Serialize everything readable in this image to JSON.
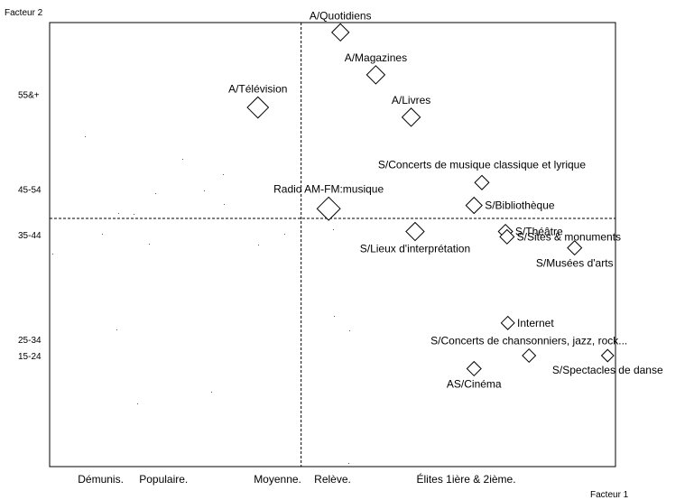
{
  "chart_data": {
    "type": "scatter",
    "xlabel": "Facteur 1",
    "ylabel": "Facteur 2",
    "x_category_labels": [
      {
        "label": "Démunis.",
        "x": -2.55
      },
      {
        "label": "Populaire.",
        "x": -1.75
      },
      {
        "label": "Moyenne.",
        "x": -0.3
      },
      {
        "label": "Relève.",
        "x": 0.4
      },
      {
        "label": "Élites 1ière & 2ième.",
        "x": 2.1
      }
    ],
    "y_category_labels": [
      {
        "label": "55&+",
        "y": 1.9
      },
      {
        "label": "45-54",
        "y": 0.45
      },
      {
        "label": "35-44",
        "y": -0.25
      },
      {
        "label": "25-34",
        "y": -1.85
      },
      {
        "label": "15-24",
        "y": -2.1
      }
    ],
    "points": [
      {
        "label": "A/Quotidiens",
        "x": 0.5,
        "y": 2.85,
        "size": 1.0,
        "label_pos": "top"
      },
      {
        "label": "A/Magazines",
        "x": 0.95,
        "y": 2.2,
        "size": 1.1,
        "label_pos": "top"
      },
      {
        "label": "A/Télévision",
        "x": -0.55,
        "y": 1.7,
        "size": 1.4,
        "label_pos": "top"
      },
      {
        "label": "A/Livres",
        "x": 1.4,
        "y": 1.55,
        "size": 1.1,
        "label_pos": "top"
      },
      {
        "label": "S/Concerts de musique classique et lyrique",
        "x": 2.3,
        "y": 0.55,
        "size": 0.7,
        "label_pos": "top-right"
      },
      {
        "label": "S/Bibliothèque",
        "x": 2.2,
        "y": 0.2,
        "size": 0.9,
        "label_pos": "right"
      },
      {
        "label": "Radio AM-FM:musique",
        "x": 0.35,
        "y": 0.15,
        "size": 1.6,
        "label_pos": "top"
      },
      {
        "label": "S/Théâtre",
        "x": 2.6,
        "y": -0.2,
        "size": 0.7,
        "label_pos": "right"
      },
      {
        "label": "S/Sites & monuments",
        "x": 2.62,
        "y": -0.28,
        "size": 0.7,
        "label_pos": "right"
      },
      {
        "label": "S/Lieux d'interprétation",
        "x": 1.45,
        "y": -0.2,
        "size": 1.1,
        "label_pos": "bottom"
      },
      {
        "label": "S/Musées d'arts",
        "x": 3.48,
        "y": -0.45,
        "size": 0.7,
        "label_pos": "bottom"
      },
      {
        "label": "Internet",
        "x": 2.63,
        "y": -1.6,
        "size": 0.6,
        "label_pos": "right"
      },
      {
        "label": "S/Concerts de chansonniers, jazz, rock...",
        "x": 2.9,
        "y": -2.1,
        "size": 0.6,
        "label_pos": "top"
      },
      {
        "label": "S/Spectacles de danse",
        "x": 3.9,
        "y": -2.1,
        "size": 0.5,
        "label_pos": "bottom"
      },
      {
        "label": "AS/Cinéma",
        "x": 2.2,
        "y": -2.3,
        "size": 0.7,
        "label_pos": "bottom"
      }
    ],
    "ref_lines": {
      "x": 0,
      "y": 0
    },
    "xlim": [
      -3.2,
      4.0
    ],
    "ylim": [
      -3.8,
      3.0
    ],
    "grid": false,
    "legend": "none"
  }
}
